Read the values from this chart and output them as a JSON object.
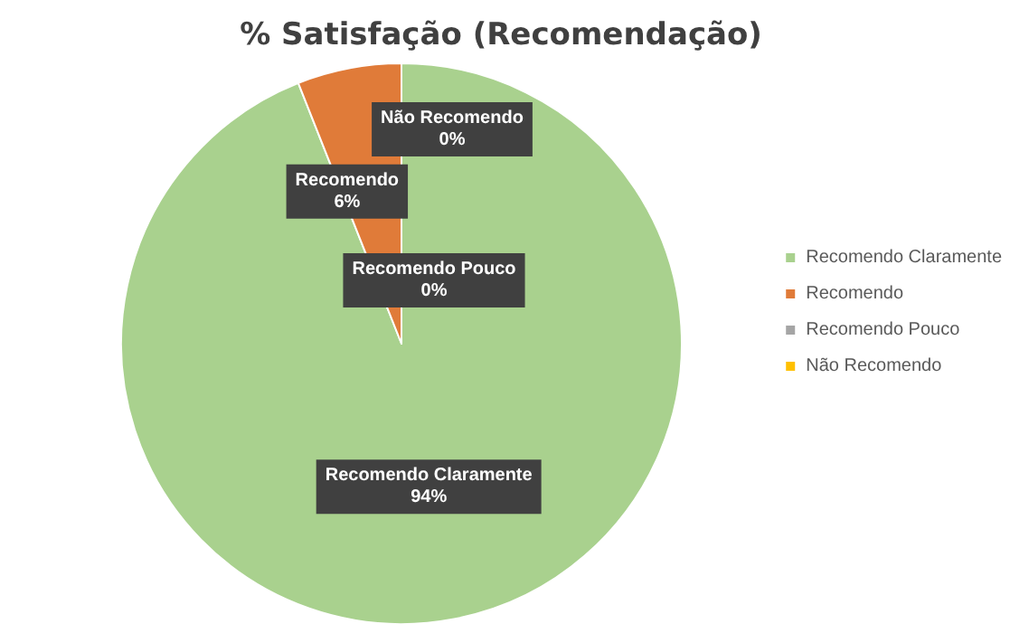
{
  "chart_data": {
    "type": "pie",
    "title": "% Satisfação (Recomendação)",
    "categories": [
      "Recomendo Claramente",
      "Recomendo",
      "Recomendo Pouco",
      "Não Recomendo"
    ],
    "values": [
      94,
      6,
      0,
      0
    ],
    "value_labels": [
      "94%",
      "6%",
      "0%",
      "0%"
    ],
    "colors": [
      "#a9d18e",
      "#e07b39",
      "#a5a5a5",
      "#ffc000"
    ],
    "legend": "right"
  }
}
